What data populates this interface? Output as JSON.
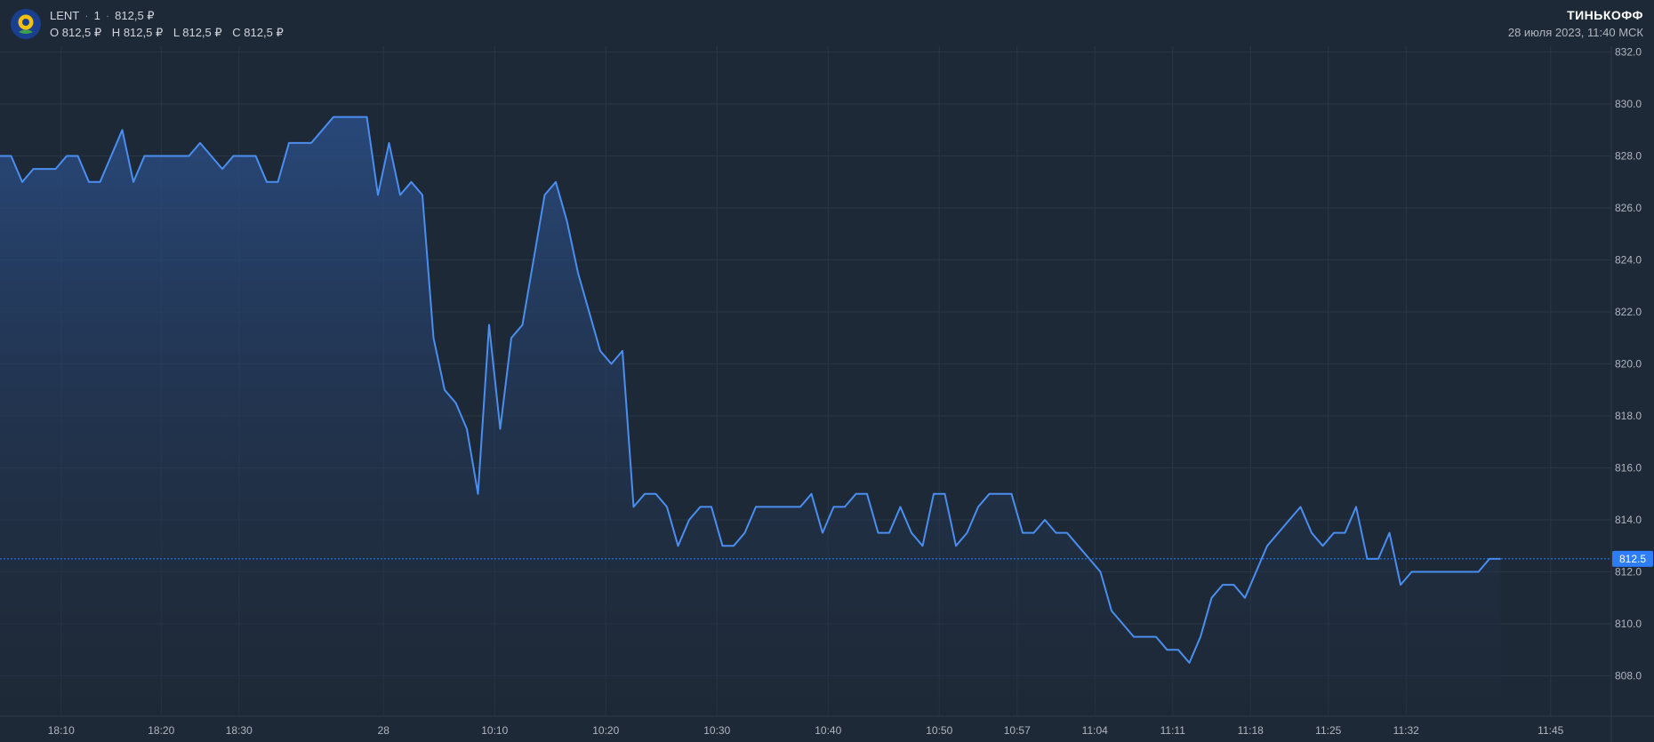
{
  "header": {
    "ticker": "LENT",
    "interval": "1",
    "last_price": "812,5 ₽",
    "ohlc": [
      {
        "label": "O",
        "value": "812,5 ₽"
      },
      {
        "label": "H",
        "value": "812,5 ₽"
      },
      {
        "label": "L",
        "value": "812,5 ₽"
      },
      {
        "label": "C",
        "value": "812,5 ₽"
      }
    ],
    "brand": "ТИНЬКОФФ",
    "datetime": "28 июля 2023, 11:40 МСК"
  },
  "colors": {
    "background": "#1e2937",
    "line": "#4a8ef0",
    "grid": "#2a3646",
    "price_tag": "#2f7df6",
    "text": "#b2b5be"
  },
  "chart_data": {
    "type": "area",
    "title": "",
    "xlabel": "",
    "ylabel": "",
    "ylim": [
      806.5,
      832.0
    ],
    "grid": true,
    "y_ticks": [
      "832.0",
      "830.0",
      "828.0",
      "826.0",
      "824.0",
      "822.0",
      "820.0",
      "818.0",
      "816.0",
      "814.0",
      "812.0",
      "810.0",
      "808.0"
    ],
    "y_tick_values": [
      832,
      830,
      828,
      826,
      824,
      822,
      820,
      818,
      816,
      814,
      812,
      810,
      808
    ],
    "x_ticks": [
      "18:10",
      "18:20",
      "18:30",
      "28",
      "10:10",
      "10:20",
      "10:30",
      "10:40",
      "10:50",
      "10:57",
      "11:04",
      "11:11",
      "11:18",
      "11:25",
      "11:32",
      "11:45"
    ],
    "x_tick_index": [
      5.5,
      14.5,
      21.5,
      34.5,
      44.5,
      54.5,
      64.5,
      74.5,
      84.5,
      91.5,
      98.5,
      105.5,
      112.5,
      119.5,
      126.5,
      139.5
    ],
    "last_price_label": "812.5",
    "last_price": 812.5,
    "series": [
      {
        "values": [
          828.0,
          828.0,
          827.0,
          827.5,
          827.5,
          827.5,
          828.0,
          828.0,
          827.0,
          827.0,
          828.0,
          829.0,
          827.0,
          828.0,
          828.0,
          828.0,
          828.0,
          828.0,
          828.5,
          828.0,
          827.5,
          828.0,
          828.0,
          828.0,
          827.0,
          827.0,
          828.5,
          828.5,
          828.5,
          829.0,
          829.5,
          829.5,
          829.5,
          829.5,
          826.5,
          828.5,
          826.5,
          827.0,
          826.5,
          821.0,
          819.0,
          818.5,
          817.5,
          815.0,
          821.5,
          817.5,
          821.0,
          821.5,
          824.0,
          826.5,
          827.0,
          825.5,
          823.5,
          822.0,
          820.5,
          820.0,
          820.5,
          814.5,
          815.0,
          815.0,
          814.5,
          813.0,
          814.0,
          814.5,
          814.5,
          813.0,
          813.0,
          813.5,
          814.5,
          814.5,
          814.5,
          814.5,
          814.5,
          815.0,
          813.5,
          814.5,
          814.5,
          815.0,
          815.0,
          813.5,
          813.5,
          814.5,
          813.5,
          813.0,
          815.0,
          815.0,
          813.0,
          813.5,
          814.5,
          815.0,
          815.0,
          815.0,
          813.5,
          813.5,
          814.0,
          813.5,
          813.5,
          813.0,
          812.5,
          812.0,
          810.5,
          810.0,
          809.5,
          809.5,
          809.5,
          809.0,
          809.0,
          808.5,
          809.5,
          811.0,
          811.5,
          811.5,
          811.0,
          812.0,
          813.0,
          813.5,
          814.0,
          814.5,
          813.5,
          813.0,
          813.5,
          813.5,
          814.5,
          812.5,
          812.5,
          813.5,
          811.5,
          812.0,
          812.0,
          812.0,
          812.0,
          812.0,
          812.0,
          812.0,
          812.5,
          812.5
        ]
      }
    ]
  }
}
